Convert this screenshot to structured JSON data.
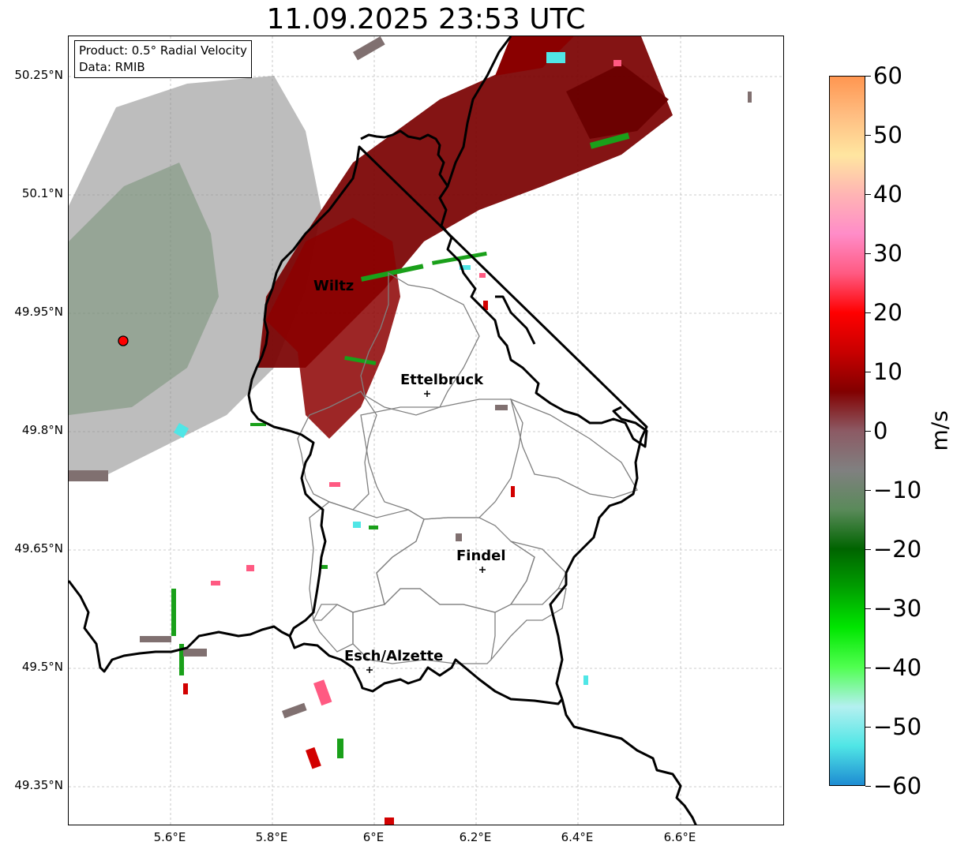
{
  "title": "11.09.2025 23:53 UTC",
  "info": {
    "product": "Product: 0.5° Radial Velocity",
    "data": "Data: RMIB"
  },
  "lat_ticks": [
    "50.25°N",
    "50.1°N",
    "49.95°N",
    "49.8°N",
    "49.65°N",
    "49.5°N",
    "49.35°N"
  ],
  "lon_ticks": [
    "5.6°E",
    "5.8°E",
    "6°E",
    "6.2°E",
    "6.4°E",
    "6.6°E"
  ],
  "cities": [
    "Wiltz",
    "Ettelbruck",
    "Findel",
    "Esch/Alzette"
  ],
  "colorbar": {
    "label": "m/s",
    "ticks": [
      "60",
      "50",
      "40",
      "30",
      "20",
      "10",
      "0",
      "−10",
      "−20",
      "−30",
      "−40",
      "−50",
      "−60"
    ],
    "stops": [
      "#ff9650",
      "#ffbe82",
      "#ffe6a0",
      "#ffb4b4",
      "#ff8cc8",
      "#ff5a82",
      "#ff0000",
      "#c80000",
      "#820000",
      "#8c5a64",
      "#808080",
      "#5a8a5a",
      "#006400",
      "#00a000",
      "#00e600",
      "#50ff50",
      "#b4f0f0",
      "#50e6e6",
      "#1e8cd2"
    ]
  },
  "colors": {
    "inbound_strong": "#7a0000",
    "inbound": "#b00000",
    "near_zero": "#7f7f7f",
    "outbound": "#1aa01a",
    "radar_site": "#ff0000"
  }
}
